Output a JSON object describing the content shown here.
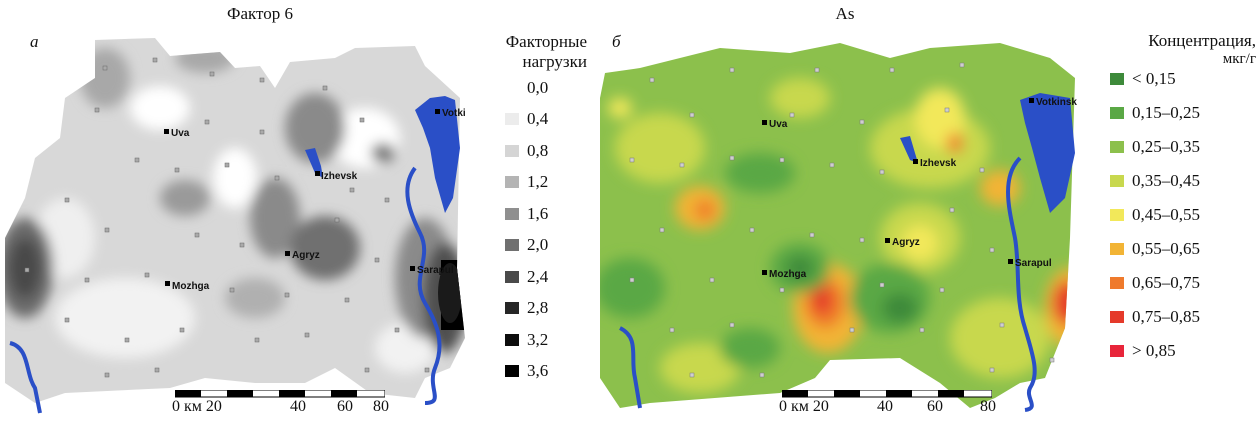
{
  "panel_a": {
    "letter": "а",
    "title": "Фактор 6",
    "legend_title_line1": "Факторные",
    "legend_title_line2": "нагрузки",
    "legend": [
      {
        "label": "0,0",
        "color": "#ffffff"
      },
      {
        "label": "0,4",
        "color": "#ececec"
      },
      {
        "label": "0,8",
        "color": "#d5d5d5"
      },
      {
        "label": "1,2",
        "color": "#b4b4b4"
      },
      {
        "label": "1,6",
        "color": "#8f8f8f"
      },
      {
        "label": "2,0",
        "color": "#707070"
      },
      {
        "label": "2,4",
        "color": "#4a4a4a"
      },
      {
        "label": "2,8",
        "color": "#262626"
      },
      {
        "label": "3,2",
        "color": "#0d0d0d"
      },
      {
        "label": "3,6",
        "color": "#000000"
      }
    ],
    "cities": [
      "Votkinsk",
      "Uva",
      "Izhevsk",
      "Agryz",
      "Sarapul",
      "Mozhga"
    ],
    "scale": {
      "ticks": [
        "0 км 20",
        "40",
        "60",
        "80"
      ]
    }
  },
  "panel_b": {
    "letter": "б",
    "title": "As",
    "legend_title_line1": "Концентрация,",
    "legend_title_line2": "мкг/г",
    "legend": [
      {
        "label": "< 0,15",
        "color": "#3d8a3a"
      },
      {
        "label": "0,15–0,25",
        "color": "#5aa845"
      },
      {
        "label": "0,25–0,35",
        "color": "#8cc04c"
      },
      {
        "label": "0,35–0,45",
        "color": "#c8d84e"
      },
      {
        "label": "0,45–0,55",
        "color": "#f2e85a"
      },
      {
        "label": "0,55–0,65",
        "color": "#f2b435"
      },
      {
        "label": "0,65–0,75",
        "color": "#ef7a2c"
      },
      {
        "label": "0,75–0,85",
        "color": "#e53a2a"
      },
      {
        "label": "> 0,85",
        "color": "#e8253a"
      }
    ],
    "cities": [
      "Votkinsk",
      "Uva",
      "Izhevsk",
      "Agryz",
      "Sarapul",
      "Mozhga"
    ],
    "scale": {
      "ticks": [
        "0 км 20",
        "40",
        "60",
        "80"
      ]
    }
  },
  "colors": {
    "river": "#2a4fc7"
  }
}
